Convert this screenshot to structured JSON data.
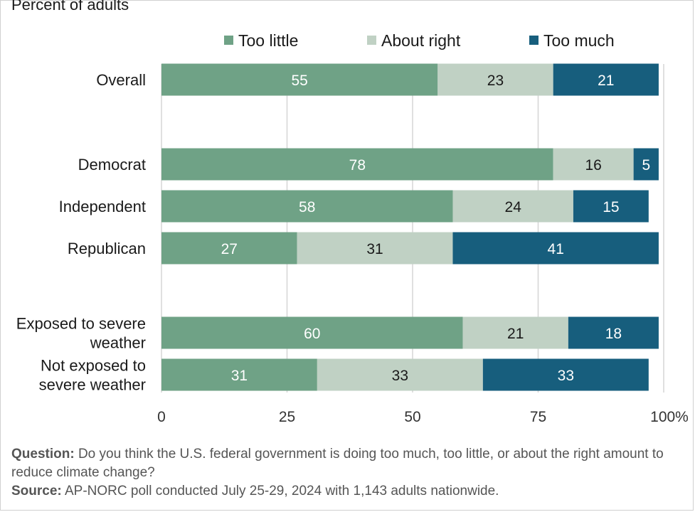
{
  "subtitle": "Percent of adults",
  "notes": {
    "question_label": "Question:",
    "question_text": "Do you think the U.S. federal government is doing too much, too little, or about the right amount to reduce climate change?",
    "source_label": "Source:",
    "source_text": "AP-NORC poll conducted July 25-29, 2024 with 1,143 adults nationwide."
  },
  "colors": {
    "too_little": "#6fa286",
    "about_right": "#c0d1c4",
    "too_much": "#175e7d",
    "grid": "#d6d6d6",
    "text_light": "#ffffff",
    "text_dark": "#1a1a1a"
  },
  "chart_data": {
    "type": "bar",
    "orientation": "horizontal",
    "stacked": true,
    "categories": [
      "Overall",
      "Democrat",
      "Independent",
      "Republican",
      "Exposed to severe weather",
      "Not exposed to severe weather"
    ],
    "category_lines": [
      [
        "Overall"
      ],
      [
        "Democrat"
      ],
      [
        "Independent"
      ],
      [
        "Republican"
      ],
      [
        "Exposed to severe",
        "weather"
      ],
      [
        "Not exposed to",
        "severe weather"
      ]
    ],
    "series": [
      {
        "name": "Too little",
        "values": [
          55,
          78,
          58,
          27,
          60,
          31
        ]
      },
      {
        "name": "About right",
        "values": [
          23,
          16,
          24,
          31,
          21,
          33
        ]
      },
      {
        "name": "Too much",
        "values": [
          21,
          5,
          15,
          41,
          18,
          33
        ]
      }
    ],
    "xlim": [
      0,
      100
    ],
    "xticks": [
      "0",
      "25",
      "50",
      "75",
      "100%"
    ],
    "grid": true,
    "legend": "top"
  }
}
